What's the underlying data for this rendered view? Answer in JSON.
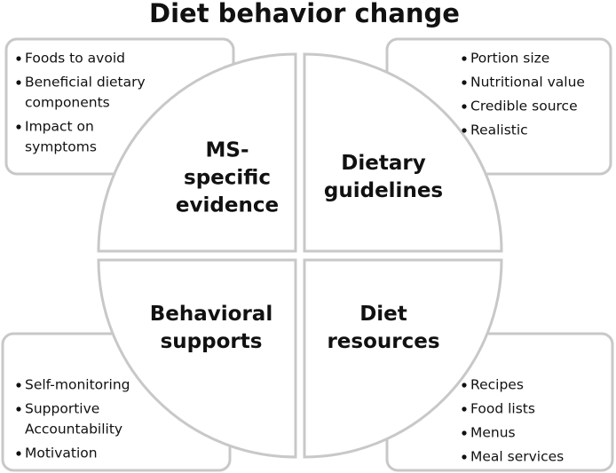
{
  "title": "Diet behavior change",
  "quadrants": [
    {
      "label": [
        "MS-",
        "specific",
        "evidence"
      ],
      "items": [
        [
          "Foods to avoid"
        ],
        [
          "Beneficial dietary",
          "components"
        ],
        [
          "Impact on",
          "symptoms"
        ]
      ]
    },
    {
      "label": [
        "Dietary",
        "guidelines"
      ],
      "items": [
        [
          "Portion size"
        ],
        [
          "Nutritional value"
        ],
        [
          "Credible source"
        ],
        [
          "Realistic"
        ]
      ]
    },
    {
      "label": [
        "Behavioral",
        "supports"
      ],
      "items": [
        [
          "Self-monitoring"
        ],
        [
          "Supportive",
          "Accountability"
        ],
        [
          "Motivation"
        ]
      ]
    },
    {
      "label": [
        "Diet",
        "resources"
      ],
      "items": [
        [
          "Recipes"
        ],
        [
          "Food lists"
        ],
        [
          "Menus"
        ],
        [
          "Meal services"
        ]
      ]
    }
  ]
}
